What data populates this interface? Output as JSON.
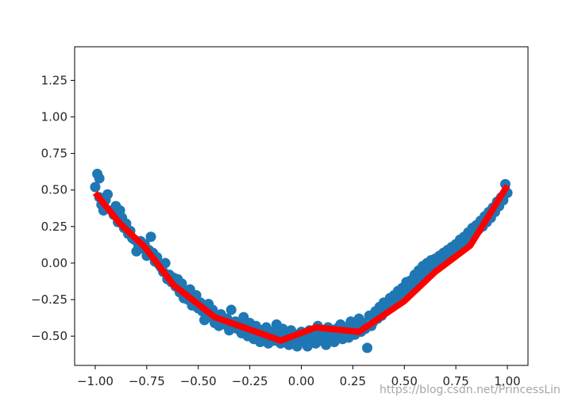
{
  "watermark": "https://blog.csdn.net/PrincessLin",
  "chart_data": {
    "type": "scatter",
    "title": "",
    "xlabel": "",
    "ylabel": "",
    "xlim": [
      -1.1,
      1.1
    ],
    "ylim": [
      -0.7,
      1.48
    ],
    "x_ticks": [
      "−1.00",
      "−0.75",
      "−0.50",
      "−0.25",
      "0.00",
      "0.25",
      "0.50",
      "0.75",
      "1.00"
    ],
    "y_ticks": [
      "−0.50",
      "−0.25",
      "0.00",
      "0.25",
      "0.50",
      "0.75",
      "1.00",
      "1.25"
    ],
    "grid": false,
    "colors": {
      "scatter": "#1f77b4",
      "fit_line": "#ff0000",
      "axes": "#000000"
    },
    "series": [
      {
        "kind": "scatter",
        "points": [
          [
            -1.0,
            0.52
          ],
          [
            -0.99,
            0.61
          ],
          [
            -0.98,
            0.58
          ],
          [
            -0.98,
            0.45
          ],
          [
            -0.97,
            0.4
          ],
          [
            -0.96,
            0.36
          ],
          [
            -0.95,
            0.43
          ],
          [
            -0.94,
            0.47
          ],
          [
            -0.92,
            0.36
          ],
          [
            -0.91,
            0.33
          ],
          [
            -0.9,
            0.39
          ],
          [
            -0.89,
            0.28
          ],
          [
            -0.88,
            0.36
          ],
          [
            -0.87,
            0.31
          ],
          [
            -0.86,
            0.24
          ],
          [
            -0.85,
            0.27
          ],
          [
            -0.84,
            0.2
          ],
          [
            -0.83,
            0.22
          ],
          [
            -0.82,
            0.17
          ],
          [
            -0.81,
            0.16
          ],
          [
            -0.8,
            0.08
          ],
          [
            -0.79,
            0.12
          ],
          [
            -0.78,
            0.15
          ],
          [
            -0.77,
            0.1
          ],
          [
            -0.76,
            0.13
          ],
          [
            -0.75,
            0.05
          ],
          [
            -0.74,
            0.09
          ],
          [
            -0.73,
            0.18
          ],
          [
            -0.72,
            0.07
          ],
          [
            -0.71,
            0.01
          ],
          [
            -0.7,
            0.04
          ],
          [
            -0.69,
            -0.01
          ],
          [
            -0.68,
            -0.03
          ],
          [
            -0.67,
            -0.06
          ],
          [
            -0.66,
            0.0
          ],
          [
            -0.65,
            -0.11
          ],
          [
            -0.64,
            -0.08
          ],
          [
            -0.63,
            -0.13
          ],
          [
            -0.62,
            -0.1
          ],
          [
            -0.61,
            -0.16
          ],
          [
            -0.6,
            -0.11
          ],
          [
            -0.59,
            -0.2
          ],
          [
            -0.58,
            -0.14
          ],
          [
            -0.57,
            -0.24
          ],
          [
            -0.56,
            -0.2
          ],
          [
            -0.55,
            -0.25
          ],
          [
            -0.54,
            -0.18
          ],
          [
            -0.53,
            -0.29
          ],
          [
            -0.52,
            -0.24
          ],
          [
            -0.51,
            -0.22
          ],
          [
            -0.5,
            -0.31
          ],
          [
            -0.49,
            -0.27
          ],
          [
            -0.48,
            -0.33
          ],
          [
            -0.47,
            -0.39
          ],
          [
            -0.46,
            -0.34
          ],
          [
            -0.45,
            -0.28
          ],
          [
            -0.44,
            -0.37
          ],
          [
            -0.43,
            -0.32
          ],
          [
            -0.42,
            -0.41
          ],
          [
            -0.41,
            -0.36
          ],
          [
            -0.4,
            -0.43
          ],
          [
            -0.39,
            -0.35
          ],
          [
            -0.38,
            -0.4
          ],
          [
            -0.37,
            -0.42
          ],
          [
            -0.36,
            -0.38
          ],
          [
            -0.35,
            -0.46
          ],
          [
            -0.34,
            -0.32
          ],
          [
            -0.33,
            -0.44
          ],
          [
            -0.32,
            -0.4
          ],
          [
            -0.31,
            -0.45
          ],
          [
            -0.3,
            -0.42
          ],
          [
            -0.29,
            -0.48
          ],
          [
            -0.28,
            -0.37
          ],
          [
            -0.27,
            -0.44
          ],
          [
            -0.26,
            -0.5
          ],
          [
            -0.25,
            -0.41
          ],
          [
            -0.24,
            -0.47
          ],
          [
            -0.23,
            -0.52
          ],
          [
            -0.22,
            -0.43
          ],
          [
            -0.21,
            -0.49
          ],
          [
            -0.2,
            -0.54
          ],
          [
            -0.19,
            -0.46
          ],
          [
            -0.18,
            -0.51
          ],
          [
            -0.17,
            -0.44
          ],
          [
            -0.16,
            -0.55
          ],
          [
            -0.15,
            -0.5
          ],
          [
            -0.14,
            -0.47
          ],
          [
            -0.13,
            -0.53
          ],
          [
            -0.12,
            -0.42
          ],
          [
            -0.11,
            -0.49
          ],
          [
            -0.1,
            -0.55
          ],
          [
            -0.09,
            -0.45
          ],
          [
            -0.08,
            -0.51
          ],
          [
            -0.07,
            -0.48
          ],
          [
            -0.06,
            -0.56
          ],
          [
            -0.05,
            -0.46
          ],
          [
            -0.04,
            -0.53
          ],
          [
            -0.03,
            -0.49
          ],
          [
            -0.02,
            -0.57
          ],
          [
            -0.01,
            -0.51
          ],
          [
            0.0,
            -0.47
          ],
          [
            0.01,
            -0.53
          ],
          [
            0.02,
            -0.5
          ],
          [
            0.03,
            -0.57
          ],
          [
            0.04,
            -0.46
          ],
          [
            0.05,
            -0.52
          ],
          [
            0.06,
            -0.48
          ],
          [
            0.07,
            -0.55
          ],
          [
            0.08,
            -0.43
          ],
          [
            0.09,
            -0.5
          ],
          [
            0.1,
            -0.53
          ],
          [
            0.11,
            -0.47
          ],
          [
            0.12,
            -0.56
          ],
          [
            0.13,
            -0.44
          ],
          [
            0.14,
            -0.51
          ],
          [
            0.15,
            -0.48
          ],
          [
            0.16,
            -0.54
          ],
          [
            0.17,
            -0.45
          ],
          [
            0.18,
            -0.5
          ],
          [
            0.19,
            -0.42
          ],
          [
            0.2,
            -0.52
          ],
          [
            0.21,
            -0.47
          ],
          [
            0.22,
            -0.44
          ],
          [
            0.23,
            -0.51
          ],
          [
            0.24,
            -0.4
          ],
          [
            0.25,
            -0.46
          ],
          [
            0.26,
            -0.49
          ],
          [
            0.27,
            -0.43
          ],
          [
            0.28,
            -0.38
          ],
          [
            0.29,
            -0.47
          ],
          [
            0.3,
            -0.41
          ],
          [
            0.31,
            -0.45
          ],
          [
            0.32,
            -0.58
          ],
          [
            0.33,
            -0.36
          ],
          [
            0.34,
            -0.43
          ],
          [
            0.35,
            -0.4
          ],
          [
            0.36,
            -0.33
          ],
          [
            0.37,
            -0.38
          ],
          [
            0.38,
            -0.3
          ],
          [
            0.39,
            -0.36
          ],
          [
            0.4,
            -0.27
          ],
          [
            0.41,
            -0.33
          ],
          [
            0.42,
            -0.29
          ],
          [
            0.43,
            -0.24
          ],
          [
            0.44,
            -0.3
          ],
          [
            0.45,
            -0.22
          ],
          [
            0.46,
            -0.27
          ],
          [
            0.47,
            -0.19
          ],
          [
            0.48,
            -0.25
          ],
          [
            0.49,
            -0.17
          ],
          [
            0.5,
            -0.22
          ],
          [
            0.51,
            -0.13
          ],
          [
            0.52,
            -0.19
          ],
          [
            0.53,
            -0.12
          ],
          [
            0.54,
            -0.16
          ],
          [
            0.55,
            -0.08
          ],
          [
            0.56,
            -0.14
          ],
          [
            0.57,
            -0.05
          ],
          [
            0.58,
            -0.1
          ],
          [
            0.59,
            -0.02
          ],
          [
            0.6,
            -0.07
          ],
          [
            0.61,
            0.0
          ],
          [
            0.62,
            -0.04
          ],
          [
            0.63,
            0.02
          ],
          [
            0.64,
            -0.02
          ],
          [
            0.65,
            0.03
          ],
          [
            0.66,
            -0.01
          ],
          [
            0.67,
            0.05
          ],
          [
            0.68,
            0.02
          ],
          [
            0.69,
            0.07
          ],
          [
            0.7,
            0.04
          ],
          [
            0.71,
            0.09
          ],
          [
            0.72,
            0.06
          ],
          [
            0.73,
            0.11
          ],
          [
            0.74,
            0.08
          ],
          [
            0.75,
            0.13
          ],
          [
            0.76,
            0.1
          ],
          [
            0.77,
            0.16
          ],
          [
            0.78,
            0.12
          ],
          [
            0.79,
            0.18
          ],
          [
            0.8,
            0.15
          ],
          [
            0.81,
            0.21
          ],
          [
            0.82,
            0.17
          ],
          [
            0.83,
            0.24
          ],
          [
            0.84,
            0.2
          ],
          [
            0.85,
            0.26
          ],
          [
            0.86,
            0.23
          ],
          [
            0.87,
            0.29
          ],
          [
            0.88,
            0.25
          ],
          [
            0.89,
            0.32
          ],
          [
            0.9,
            0.28
          ],
          [
            0.91,
            0.35
          ],
          [
            0.92,
            0.31
          ],
          [
            0.93,
            0.38
          ],
          [
            0.94,
            0.35
          ],
          [
            0.95,
            0.42
          ],
          [
            0.96,
            0.39
          ],
          [
            0.97,
            0.45
          ],
          [
            0.98,
            0.43
          ],
          [
            0.99,
            0.54
          ],
          [
            1.0,
            0.48
          ]
        ]
      },
      {
        "kind": "line",
        "points": [
          [
            -1.0,
            0.48
          ],
          [
            -0.88,
            0.27
          ],
          [
            -0.76,
            0.11
          ],
          [
            -0.62,
            -0.15
          ],
          [
            -0.42,
            -0.37
          ],
          [
            -0.1,
            -0.53
          ],
          [
            0.07,
            -0.44
          ],
          [
            0.28,
            -0.47
          ],
          [
            0.5,
            -0.26
          ],
          [
            0.65,
            -0.06
          ],
          [
            0.82,
            0.12
          ],
          [
            1.0,
            0.53
          ]
        ]
      }
    ]
  }
}
